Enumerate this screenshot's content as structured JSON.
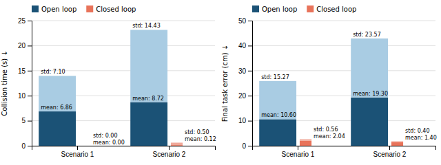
{
  "chart_data": [
    {
      "type": "bar",
      "stacked": true,
      "ylabel": "Collision time (s) ↓",
      "categories": [
        "Scenario 1",
        "Scenario 2"
      ],
      "series": [
        {
          "name": "Open loop",
          "color": "#1b5276",
          "values": [
            6.86,
            8.72
          ],
          "value_labels": [
            "mean: 6.86",
            "mean: 8.72"
          ],
          "std": [
            7.1,
            14.43
          ],
          "std_color": "#a9cce3",
          "std_labels": [
            "std: 7.10",
            "std: 14.43"
          ]
        },
        {
          "name": "Closed loop",
          "color": "#e8735a",
          "values": [
            0.0,
            0.12
          ],
          "value_labels": [
            "mean: 0.00",
            "mean: 0.12"
          ],
          "std": [
            0.0,
            0.5
          ],
          "std_color": "#f0a899",
          "std_labels": [
            "std: 0.00",
            "std: 0.50"
          ]
        }
      ],
      "ylim": [
        0,
        25
      ],
      "yticks": [
        0,
        5,
        10,
        15,
        20,
        25
      ],
      "grid": true,
      "legend": "upper left",
      "data_labels": true
    },
    {
      "type": "bar",
      "stacked": true,
      "ylabel": "Final task error (cm) ↓",
      "categories": [
        "Scenario 1",
        "Scenario 2"
      ],
      "series": [
        {
          "name": "Open loop",
          "color": "#1b5276",
          "values": [
            10.6,
            19.3
          ],
          "value_labels": [
            "mean: 10.60",
            "mean: 19.30"
          ],
          "std": [
            15.27,
            23.57
          ],
          "std_color": "#a9cce3",
          "std_labels": [
            "std: 15.27",
            "std: 23.57"
          ]
        },
        {
          "name": "Closed loop",
          "color": "#e8735a",
          "values": [
            2.04,
            1.4
          ],
          "value_labels": [
            "mean: 2.04",
            "mean: 1.40"
          ],
          "std": [
            0.56,
            0.4
          ],
          "std_color": "#f0a899",
          "std_labels": [
            "std: 0.56",
            "std: 0.40"
          ]
        }
      ],
      "ylim": [
        0,
        50
      ],
      "yticks": [
        0,
        10,
        20,
        30,
        40,
        50
      ],
      "grid": true,
      "legend": "upper left",
      "data_labels": true
    }
  ]
}
